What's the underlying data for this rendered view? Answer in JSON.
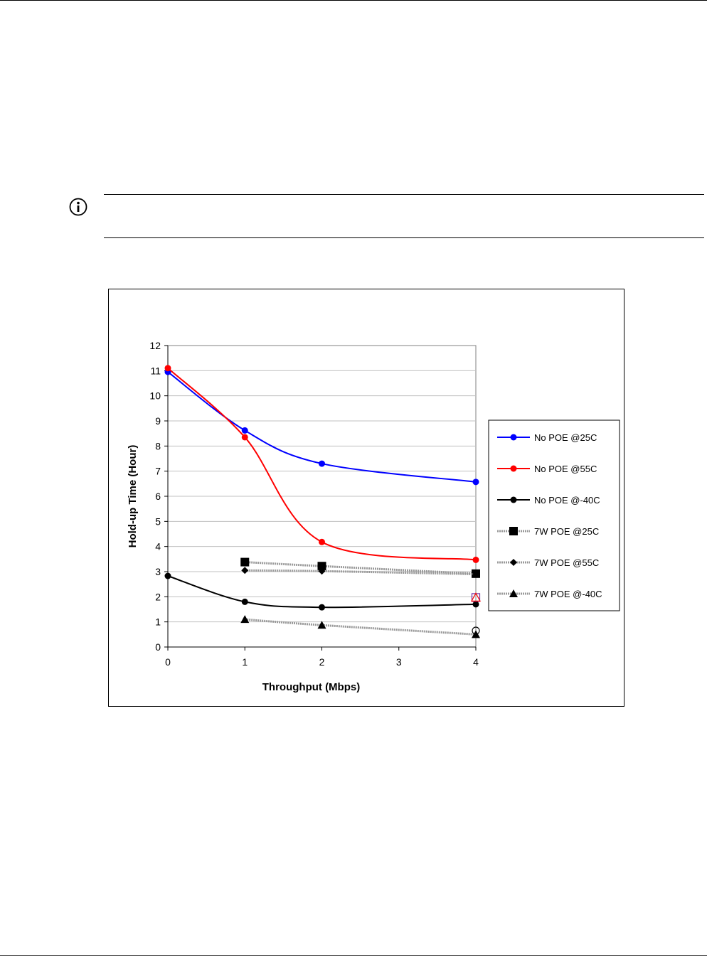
{
  "chart_data": {
    "type": "line",
    "xlabel": "Throughput (Mbps)",
    "ylabel": "Hold-up Time (Hour)",
    "xlim": [
      0,
      4
    ],
    "ylim": [
      0,
      12
    ],
    "x_ticks": [
      "0",
      "1",
      "2",
      "3",
      "4"
    ],
    "y_ticks": [
      "0",
      "1",
      "2",
      "3",
      "4",
      "5",
      "6",
      "7",
      "8",
      "9",
      "10",
      "11",
      "12"
    ],
    "grid": "horizontal",
    "legend_position": "right",
    "series": [
      {
        "name": "No POE @25C",
        "color": "#0000ff",
        "marker": "circle",
        "points": [
          [
            0,
            10.95
          ],
          [
            1,
            8.62
          ],
          [
            2,
            7.3
          ],
          [
            4,
            6.57
          ]
        ]
      },
      {
        "name": "No POE @55C",
        "color": "#ff0000",
        "marker": "circle",
        "points": [
          [
            0,
            11.1
          ],
          [
            1,
            8.35
          ],
          [
            2,
            4.18
          ],
          [
            4,
            3.47
          ]
        ]
      },
      {
        "name": "No POE @-40C",
        "color": "#000000",
        "marker": "circle",
        "points": [
          [
            0,
            2.83
          ],
          [
            1,
            1.8
          ],
          [
            2,
            1.58
          ],
          [
            4,
            1.7
          ]
        ]
      },
      {
        "name": "7W POE @25C",
        "color": "#999999",
        "marker": "square",
        "points": [
          [
            1,
            3.38
          ],
          [
            2,
            3.22
          ],
          [
            4,
            2.92
          ]
        ]
      },
      {
        "name": "7W POE @55C",
        "color": "#999999",
        "marker": "diamond",
        "points": [
          [
            1,
            3.05
          ],
          [
            2,
            3.02
          ],
          [
            4,
            2.9
          ]
        ]
      },
      {
        "name": "7W POE @-40C",
        "color": "#999999",
        "marker": "triangle",
        "points": [
          [
            1,
            1.1
          ],
          [
            2,
            0.87
          ],
          [
            4,
            0.5
          ]
        ]
      }
    ],
    "annotations": [
      {
        "x": 4,
        "y": 1.97,
        "marker": "open-square",
        "color": "#7030a0"
      },
      {
        "x": 4,
        "y": 1.97,
        "marker": "open-triangle",
        "color": "#ff0000"
      },
      {
        "x": 4,
        "y": 0.65,
        "marker": "open-circle",
        "color": "#000000"
      }
    ]
  }
}
